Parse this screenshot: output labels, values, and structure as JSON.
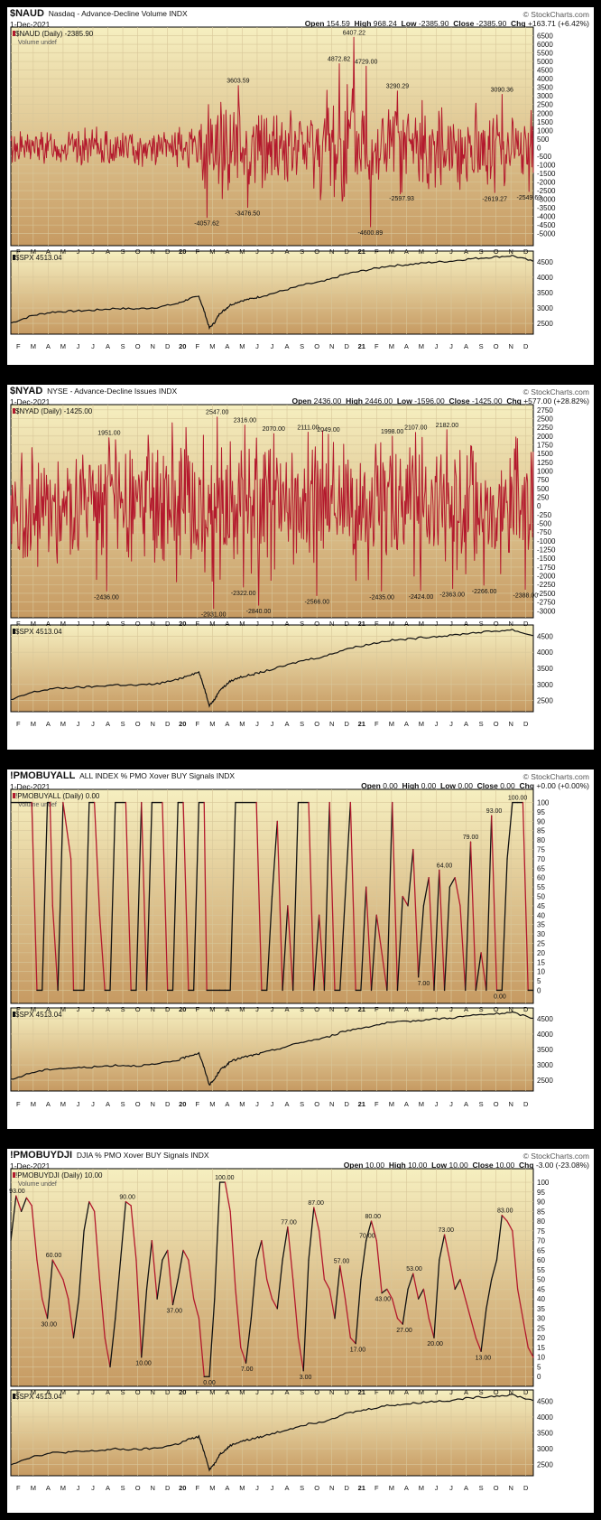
{
  "watermark": "© StockCharts.com",
  "date": "1-Dec-2021",
  "x_tick_labels": [
    "F",
    "M",
    "A",
    "M",
    "J",
    "J",
    "A",
    "S",
    "O",
    "N",
    "D",
    "20",
    "F",
    "M",
    "A",
    "M",
    "J",
    "J",
    "A",
    "S",
    "O",
    "N",
    "D",
    "21",
    "F",
    "M",
    "A",
    "M",
    "J",
    "J",
    "A",
    "S",
    "O",
    "N",
    "D"
  ],
  "colors": {
    "background_top": "#f6efc0",
    "background_bottom": "#c69a62",
    "indicator_line": "#b3192d",
    "indicator_up": "#111111",
    "spx_line": "#111111",
    "frame": "#000000"
  },
  "spx": {
    "label": "$SPX 4513.04",
    "type": "line",
    "ylim": [
      2150,
      4850
    ],
    "yticks": [
      "4500",
      "4000",
      "3500",
      "3000",
      "2500"
    ],
    "yticks_values": [
      4500,
      4000,
      3500,
      3000,
      2500
    ],
    "x": [
      0,
      4,
      8,
      12,
      16,
      20,
      24,
      28,
      32,
      34,
      36,
      37,
      38,
      39,
      40,
      41,
      42,
      44,
      46,
      48,
      52,
      56,
      60,
      64,
      68,
      72,
      76,
      80,
      84,
      88,
      92,
      96,
      100
    ],
    "values": [
      2510,
      2750,
      2870,
      2900,
      2930,
      2990,
      2970,
      3020,
      3150,
      3290,
      3380,
      2900,
      2350,
      2530,
      2830,
      2950,
      3100,
      3230,
      3300,
      3380,
      3560,
      3750,
      3870,
      4100,
      4230,
      4360,
      4410,
      4480,
      4520,
      4600,
      4650,
      4700,
      4513
    ]
  },
  "panels": [
    {
      "id": "naud",
      "symbol": "$NAUD",
      "description": "Nasdaq - Advance-Decline Volume  INDX",
      "ohlc": {
        "open": "154.59",
        "high": "968.24",
        "low": "-2385.90",
        "close": "-2385.90",
        "chg": "+163.71 (+6.42%)"
      },
      "legend": "$NAUD (Daily) -2385.90",
      "volume_label": "Volume undef",
      "chart_data": {
        "type": "line",
        "ylim": [
          -5700,
          7000
        ],
        "yticks": [
          "6500",
          "6000",
          "5500",
          "5000",
          "4500",
          "4000",
          "3500",
          "3000",
          "2500",
          "2000",
          "1500",
          "1000",
          "500",
          "0",
          "-500",
          "-1000",
          "-1500",
          "-2000",
          "-2500",
          "-3000",
          "-3500",
          "-4000",
          "-4500",
          "-5000"
        ],
        "yticks_values": [
          6500,
          6000,
          5500,
          5000,
          4500,
          4000,
          3500,
          3000,
          2500,
          2000,
          1500,
          1000,
          500,
          0,
          -500,
          -1000,
          -1500,
          -2000,
          -2500,
          -3000,
          -3500,
          -4000,
          -4500,
          -5000
        ],
        "amplitude_envelope": [
          [
            0,
            1200
          ],
          [
            35,
            1300
          ],
          [
            37,
            3800
          ],
          [
            40,
            3500
          ],
          [
            44,
            3200
          ],
          [
            48,
            2600
          ],
          [
            56,
            2800
          ],
          [
            60,
            4000
          ],
          [
            64,
            5000
          ],
          [
            67,
            4000
          ],
          [
            72,
            3200
          ],
          [
            84,
            2600
          ],
          [
            90,
            3000
          ],
          [
            100,
            2400
          ]
        ],
        "annotations": [
          {
            "text": "-4057.62",
            "x": 37.5,
            "y": -4057.62
          },
          {
            "text": "3603.59",
            "x": 43.5,
            "y": 3603.59
          },
          {
            "text": "-3476.50",
            "x": 45.3,
            "y": -3476.5
          },
          {
            "text": "4872.82",
            "x": 62.8,
            "y": 4872.82
          },
          {
            "text": "6407.22",
            "x": 65.7,
            "y": 6407.22
          },
          {
            "text": "4729.00",
            "x": 68.0,
            "y": 4729.0
          },
          {
            "text": "-4600.89",
            "x": 68.8,
            "y": -4600.89
          },
          {
            "text": "3290.29",
            "x": 74.0,
            "y": 3290.29
          },
          {
            "text": "-2597.93",
            "x": 74.8,
            "y": -2597.93
          },
          {
            "text": "3090.36",
            "x": 94.0,
            "y": 3090.36
          },
          {
            "text": "-2619.27",
            "x": 92.6,
            "y": -2619.27
          },
          {
            "text": "-2549.60",
            "x": 99.2,
            "y": -2549.6
          }
        ]
      }
    },
    {
      "id": "nyad",
      "symbol": "$NYAD",
      "description": "NYSE - Advance-Decline Issues  INDX",
      "ohlc": {
        "open": "2436.00",
        "high": "2446.00",
        "low": "-1596.00",
        "close": "-1425.00",
        "chg": "+577.00 (+28.82%)"
      },
      "legend": "$NYAD (Daily) -1425.00",
      "volume_label": "",
      "chart_data": {
        "type": "line",
        "ylim": [
          -3200,
          2900
        ],
        "yticks": [
          "2750",
          "2500",
          "2250",
          "2000",
          "1750",
          "1500",
          "1250",
          "1000",
          "750",
          "500",
          "250",
          "0",
          "-250",
          "-500",
          "-750",
          "-1000",
          "-1250",
          "-1500",
          "-1750",
          "-2000",
          "-2250",
          "-2500",
          "-2750",
          "-3000"
        ],
        "yticks_values": [
          2750,
          2500,
          2250,
          2000,
          1750,
          1500,
          1250,
          1000,
          750,
          500,
          250,
          0,
          -250,
          -500,
          -750,
          -1000,
          -1250,
          -1500,
          -1750,
          -2000,
          -2250,
          -2500,
          -2750,
          -3000
        ],
        "amplitude_envelope": [
          [
            0,
            2000
          ],
          [
            20,
            2200
          ],
          [
            37,
            2700
          ],
          [
            42,
            2700
          ],
          [
            50,
            2300
          ],
          [
            60,
            2300
          ],
          [
            70,
            2300
          ],
          [
            80,
            2200
          ],
          [
            100,
            2200
          ]
        ],
        "annotations": [
          {
            "text": "1951.00",
            "x": 18.8,
            "y": 1951
          },
          {
            "text": "-2436.00",
            "x": 18.3,
            "y": -2436
          },
          {
            "text": "2547.00",
            "x": 39.5,
            "y": 2547
          },
          {
            "text": "-2931.00",
            "x": 38.8,
            "y": -2931
          },
          {
            "text": "2316.00",
            "x": 44.8,
            "y": 2316
          },
          {
            "text": "-2322.00",
            "x": 44.5,
            "y": -2322
          },
          {
            "text": "-2840.00",
            "x": 47.4,
            "y": -2840
          },
          {
            "text": "2070.00",
            "x": 50.3,
            "y": 2070
          },
          {
            "text": "2111.00",
            "x": 56.9,
            "y": 2111
          },
          {
            "text": "-2566.00",
            "x": 58.6,
            "y": -2566
          },
          {
            "text": "2049.00",
            "x": 60.8,
            "y": 2049
          },
          {
            "text": "-2435.00",
            "x": 71.0,
            "y": -2435
          },
          {
            "text": "1998.00",
            "x": 73.0,
            "y": 1998
          },
          {
            "text": "2107.00",
            "x": 77.5,
            "y": 2107
          },
          {
            "text": "-2424.00",
            "x": 78.5,
            "y": -2424
          },
          {
            "text": "2182.00",
            "x": 83.5,
            "y": 2182
          },
          {
            "text": "-2363.00",
            "x": 84.5,
            "y": -2363
          },
          {
            "text": "-2266.00",
            "x": 90.6,
            "y": -2266
          },
          {
            "text": "-2388.00",
            "x": 98.5,
            "y": -2388
          }
        ]
      }
    },
    {
      "id": "pmobuyall",
      "symbol": "!PMOBUYALL",
      "description": "ALL INDEX % PMO Xover BUY Signals  INDX",
      "ohlc": {
        "open": "0.00",
        "high": "0.00",
        "low": "0.00",
        "close": "0.00",
        "chg": "+0.00 (+0.00%)"
      },
      "legend": "!PMOBUYALL (Daily) 0.00",
      "volume_label": "Volume undef",
      "chart_data": {
        "type": "line",
        "ylim": [
          -7,
          107
        ],
        "yticks": [
          "100",
          "95",
          "90",
          "85",
          "80",
          "75",
          "70",
          "65",
          "60",
          "55",
          "50",
          "45",
          "40",
          "35",
          "30",
          "25",
          "20",
          "15",
          "10",
          "5",
          "0"
        ],
        "yticks_values": [
          100,
          95,
          90,
          85,
          80,
          75,
          70,
          65,
          60,
          55,
          50,
          45,
          40,
          35,
          30,
          25,
          20,
          15,
          10,
          5,
          0
        ],
        "x": [
          0,
          4,
          5,
          6,
          7,
          7.5,
          8,
          9,
          10,
          11,
          11.5,
          12,
          14,
          15,
          16,
          17,
          18,
          19,
          20,
          22,
          23,
          24,
          25,
          26,
          27,
          29,
          30,
          31,
          32,
          33,
          34,
          35,
          36,
          37,
          37.5,
          40,
          41,
          42,
          43,
          47,
          48,
          49,
          50,
          51,
          52,
          53,
          54,
          55,
          56,
          57,
          58,
          59,
          60,
          61,
          62,
          63,
          65,
          66,
          67,
          68,
          69,
          70,
          72,
          73,
          74,
          75,
          76,
          77,
          78,
          79,
          80,
          81,
          82,
          83,
          84,
          85,
          86,
          87,
          88,
          89,
          90,
          91,
          92,
          93,
          94,
          95,
          96,
          97,
          98,
          99,
          100
        ],
        "values": [
          100,
          100,
          0,
          0,
          100,
          100,
          45,
          0,
          100,
          80,
          70,
          0,
          0,
          100,
          100,
          40,
          0,
          0,
          100,
          100,
          0,
          0,
          100,
          0,
          100,
          100,
          0,
          0,
          100,
          100,
          0,
          0,
          100,
          100,
          0,
          0,
          0,
          0,
          100,
          100,
          0,
          0,
          50,
          90,
          0,
          45,
          0,
          100,
          100,
          100,
          0,
          40,
          0,
          100,
          0,
          0,
          100,
          0,
          0,
          55,
          0,
          40,
          0,
          100,
          0,
          50,
          45,
          75,
          7,
          45,
          60,
          0,
          64,
          0,
          55,
          60,
          45,
          0,
          79,
          0,
          20,
          0,
          93,
          0,
          0,
          70,
          100,
          100,
          100,
          0,
          0
        ]
      },
      "annotations": [
        {
          "text": "64.00",
          "x": 83,
          "y": 64
        },
        {
          "text": "7.00",
          "x": 79,
          "y": 7
        },
        {
          "text": "79.00",
          "x": 88,
          "y": 79
        },
        {
          "text": "93.00",
          "x": 92.5,
          "y": 93
        },
        {
          "text": "0.00",
          "x": 93.6,
          "y": 0
        },
        {
          "text": "100.00",
          "x": 97,
          "y": 100
        }
      ]
    },
    {
      "id": "pmobuydji",
      "symbol": "!PMOBUYDJI",
      "description": "DJIA % PMO Xover BUY Signals  INDX",
      "ohlc": {
        "open": "10.00",
        "high": "10.00",
        "low": "10.00",
        "close": "10.00",
        "chg": "-3.00 (-23.08%)"
      },
      "legend": "!PMOBUYDJI (Daily) 10.00",
      "volume_label": "Volume undef",
      "chart_data": {
        "type": "line",
        "ylim": [
          -5,
          107
        ],
        "yticks": [
          "100",
          "95",
          "90",
          "85",
          "80",
          "75",
          "70",
          "65",
          "60",
          "55",
          "50",
          "45",
          "40",
          "35",
          "30",
          "25",
          "20",
          "15",
          "10",
          "5",
          "0"
        ],
        "yticks_values": [
          100,
          95,
          90,
          85,
          80,
          75,
          70,
          65,
          60,
          55,
          50,
          45,
          40,
          35,
          30,
          25,
          20,
          15,
          10,
          5,
          0
        ],
        "x": [
          0,
          1,
          2,
          3,
          4,
          5,
          6,
          7,
          8,
          9,
          10,
          11,
          12,
          13,
          14,
          15,
          16,
          17,
          18,
          19,
          20,
          21,
          22,
          23,
          24,
          25,
          26,
          27,
          28,
          29,
          30,
          31,
          32,
          33,
          34,
          35,
          36,
          37,
          38,
          39,
          40,
          41,
          42,
          43,
          44,
          45,
          46,
          47,
          48,
          49,
          50,
          51,
          52,
          53,
          54,
          55,
          56,
          57,
          58,
          59,
          60,
          61,
          62,
          63,
          64,
          65,
          66,
          67,
          68,
          69,
          70,
          71,
          72,
          73,
          74,
          75,
          76,
          77,
          78,
          79,
          80,
          81,
          82,
          83,
          84,
          85,
          86,
          87,
          88,
          89,
          90,
          91,
          92,
          93,
          94,
          95,
          96,
          97,
          98,
          99,
          100
        ],
        "values": [
          70,
          93,
          85,
          92,
          88,
          60,
          40,
          30,
          60,
          55,
          50,
          40,
          20,
          40,
          75,
          90,
          85,
          50,
          20,
          5,
          30,
          60,
          90,
          88,
          60,
          10,
          45,
          70,
          40,
          60,
          65,
          37,
          50,
          65,
          60,
          40,
          30,
          0,
          0,
          40,
          100,
          100,
          85,
          45,
          15,
          7,
          30,
          60,
          70,
          50,
          40,
          35,
          60,
          77,
          50,
          20,
          3,
          60,
          87,
          75,
          50,
          45,
          30,
          57,
          40,
          20,
          17,
          50,
          70,
          80,
          70,
          43,
          45,
          40,
          30,
          27,
          45,
          53,
          40,
          45,
          30,
          20,
          60,
          73,
          60,
          45,
          50,
          40,
          30,
          20,
          13,
          35,
          50,
          60,
          83,
          80,
          75,
          45,
          30,
          15,
          10
        ]
      },
      "annotations": [
        {
          "text": "93.00",
          "x": 1.2,
          "y": 93
        },
        {
          "text": "60.00",
          "x": 8.2,
          "y": 60
        },
        {
          "text": "30.00",
          "x": 7.3,
          "y": 30
        },
        {
          "text": "90.00",
          "x": 22.3,
          "y": 90
        },
        {
          "text": "10.00",
          "x": 25.4,
          "y": 10
        },
        {
          "text": "37.00",
          "x": 31.3,
          "y": 37
        },
        {
          "text": "100.00",
          "x": 40.9,
          "y": 100
        },
        {
          "text": "0.00",
          "x": 38,
          "y": 0
        },
        {
          "text": "7.00",
          "x": 45.2,
          "y": 7
        },
        {
          "text": "77.00",
          "x": 53.2,
          "y": 77
        },
        {
          "text": "3.00",
          "x": 56.4,
          "y": 3
        },
        {
          "text": "87.00",
          "x": 58.4,
          "y": 87
        },
        {
          "text": "57.00",
          "x": 63.3,
          "y": 57
        },
        {
          "text": "17.00",
          "x": 66.4,
          "y": 17
        },
        {
          "text": "70.00",
          "x": 68.2,
          "y": 70
        },
        {
          "text": "80.00",
          "x": 69.3,
          "y": 80
        },
        {
          "text": "43.00",
          "x": 71.2,
          "y": 43
        },
        {
          "text": "27.00",
          "x": 75.3,
          "y": 27
        },
        {
          "text": "53.00",
          "x": 77.2,
          "y": 53
        },
        {
          "text": "20.00",
          "x": 81.2,
          "y": 20
        },
        {
          "text": "73.00",
          "x": 83.3,
          "y": 73
        },
        {
          "text": "13.00",
          "x": 90.4,
          "y": 13
        },
        {
          "text": "83.00",
          "x": 94.6,
          "y": 83
        }
      ]
    }
  ]
}
